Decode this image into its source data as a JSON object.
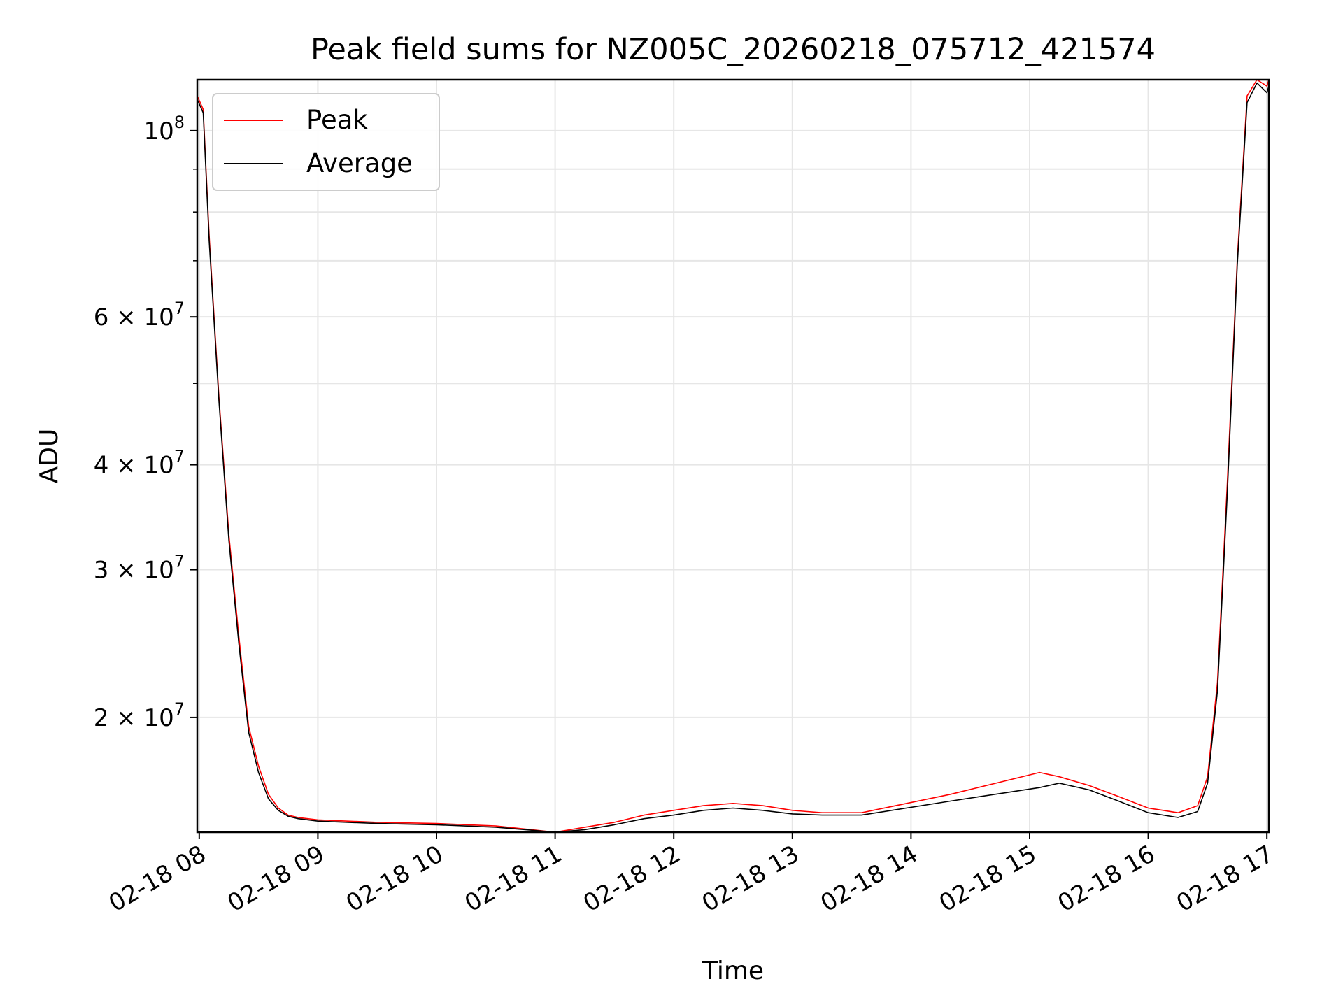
{
  "chart_data": {
    "type": "line",
    "title": "Peak field sums for NZ005C_20260218_075712_421574",
    "xlabel": "Time",
    "ylabel": "ADU",
    "y_scale": "log",
    "ylim": [
      14600000,
      115000000
    ],
    "xlim": [
      "2026-02-18 07:59",
      "2026-02-18 17:01"
    ],
    "x_tick_labels": [
      "02-18 08",
      "02-18 09",
      "02-18 10",
      "02-18 11",
      "02-18 12",
      "02-18 13",
      "02-18 14",
      "02-18 15",
      "02-18 16",
      "02-18 17"
    ],
    "x_ticks": [
      "2026-02-18 08:00",
      "2026-02-18 09:00",
      "2026-02-18 10:00",
      "2026-02-18 11:00",
      "2026-02-18 12:00",
      "2026-02-18 13:00",
      "2026-02-18 14:00",
      "2026-02-18 15:00",
      "2026-02-18 16:00",
      "2026-02-18 17:00"
    ],
    "y_major_ticks": [
      {
        "value": 100000000,
        "base": "10",
        "exp": "8"
      },
      {
        "value": 60000000,
        "base": "6 × 10",
        "exp": "7"
      },
      {
        "value": 40000000,
        "base": "4 × 10",
        "exp": "7"
      },
      {
        "value": 30000000,
        "base": "3 × 10",
        "exp": "7"
      },
      {
        "value": 20000000,
        "base": "2 × 10",
        "exp": "7"
      }
    ],
    "y_minor_ticks": [
      90000000,
      80000000,
      70000000,
      50000000
    ],
    "grid": true,
    "legend_position": "top-left",
    "series": [
      {
        "name": "Peak",
        "color": "#ff0000",
        "x": [
          "2026-02-18 07:59",
          "2026-02-18 08:02",
          "2026-02-18 08:05",
          "2026-02-18 08:10",
          "2026-02-18 08:15",
          "2026-02-18 08:20",
          "2026-02-18 08:25",
          "2026-02-18 08:30",
          "2026-02-18 08:35",
          "2026-02-18 08:40",
          "2026-02-18 08:45",
          "2026-02-18 08:50",
          "2026-02-18 09:00",
          "2026-02-18 09:30",
          "2026-02-18 10:00",
          "2026-02-18 10:30",
          "2026-02-18 11:00",
          "2026-02-18 11:15",
          "2026-02-18 11:30",
          "2026-02-18 11:45",
          "2026-02-18 12:00",
          "2026-02-18 12:15",
          "2026-02-18 12:30",
          "2026-02-18 12:45",
          "2026-02-18 13:00",
          "2026-02-18 13:15",
          "2026-02-18 13:35",
          "2026-02-18 14:20",
          "2026-02-18 15:05",
          "2026-02-18 15:15",
          "2026-02-18 15:30",
          "2026-02-18 15:45",
          "2026-02-18 16:00",
          "2026-02-18 16:15",
          "2026-02-18 16:25",
          "2026-02-18 16:30",
          "2026-02-18 16:35",
          "2026-02-18 16:40",
          "2026-02-18 16:45",
          "2026-02-18 16:50",
          "2026-02-18 16:55",
          "2026-02-18 17:00",
          "2026-02-18 17:01"
        ],
        "y": [
          110000000,
          106000000,
          75000000,
          48000000,
          33000000,
          25000000,
          19500000,
          17500000,
          16200000,
          15600000,
          15300000,
          15200000,
          15100000,
          15000000,
          14950000,
          14850000,
          14600000,
          14800000,
          15000000,
          15300000,
          15500000,
          15700000,
          15800000,
          15700000,
          15500000,
          15400000,
          15400000,
          16200000,
          17200000,
          17000000,
          16600000,
          16100000,
          15600000,
          15400000,
          15700000,
          17000000,
          22000000,
          38000000,
          70000000,
          110000000,
          115000000,
          113000000,
          115000000
        ]
      },
      {
        "name": "Average",
        "color": "#000000",
        "x": [
          "2026-02-18 07:59",
          "2026-02-18 08:02",
          "2026-02-18 08:05",
          "2026-02-18 08:10",
          "2026-02-18 08:15",
          "2026-02-18 08:20",
          "2026-02-18 08:25",
          "2026-02-18 08:30",
          "2026-02-18 08:35",
          "2026-02-18 08:40",
          "2026-02-18 08:45",
          "2026-02-18 08:50",
          "2026-02-18 09:00",
          "2026-02-18 09:30",
          "2026-02-18 10:00",
          "2026-02-18 10:30",
          "2026-02-18 11:00",
          "2026-02-18 11:15",
          "2026-02-18 11:30",
          "2026-02-18 11:45",
          "2026-02-18 12:00",
          "2026-02-18 12:15",
          "2026-02-18 12:30",
          "2026-02-18 12:45",
          "2026-02-18 13:00",
          "2026-02-18 13:15",
          "2026-02-18 13:35",
          "2026-02-18 14:20",
          "2026-02-18 15:05",
          "2026-02-18 15:15",
          "2026-02-18 15:30",
          "2026-02-18 15:45",
          "2026-02-18 16:00",
          "2026-02-18 16:15",
          "2026-02-18 16:25",
          "2026-02-18 16:30",
          "2026-02-18 16:35",
          "2026-02-18 16:40",
          "2026-02-18 16:45",
          "2026-02-18 16:50",
          "2026-02-18 16:55",
          "2026-02-18 17:00",
          "2026-02-18 17:01"
        ],
        "y": [
          109000000,
          105000000,
          74000000,
          47500000,
          32500000,
          24500000,
          19200000,
          17200000,
          16000000,
          15500000,
          15250000,
          15150000,
          15050000,
          14950000,
          14900000,
          14800000,
          14600000,
          14700000,
          14900000,
          15150000,
          15300000,
          15500000,
          15600000,
          15500000,
          15350000,
          15300000,
          15300000,
          15900000,
          16500000,
          16700000,
          16400000,
          15900000,
          15400000,
          15200000,
          15450000,
          16700000,
          21500000,
          37000000,
          69000000,
          108000000,
          114000000,
          111000000,
          113000000
        ]
      }
    ],
    "annotations": []
  },
  "style": {
    "peak_color": "#ff0000",
    "average_color": "#000000",
    "grid_color": "#e6e6e6",
    "axes_color": "#000000"
  }
}
